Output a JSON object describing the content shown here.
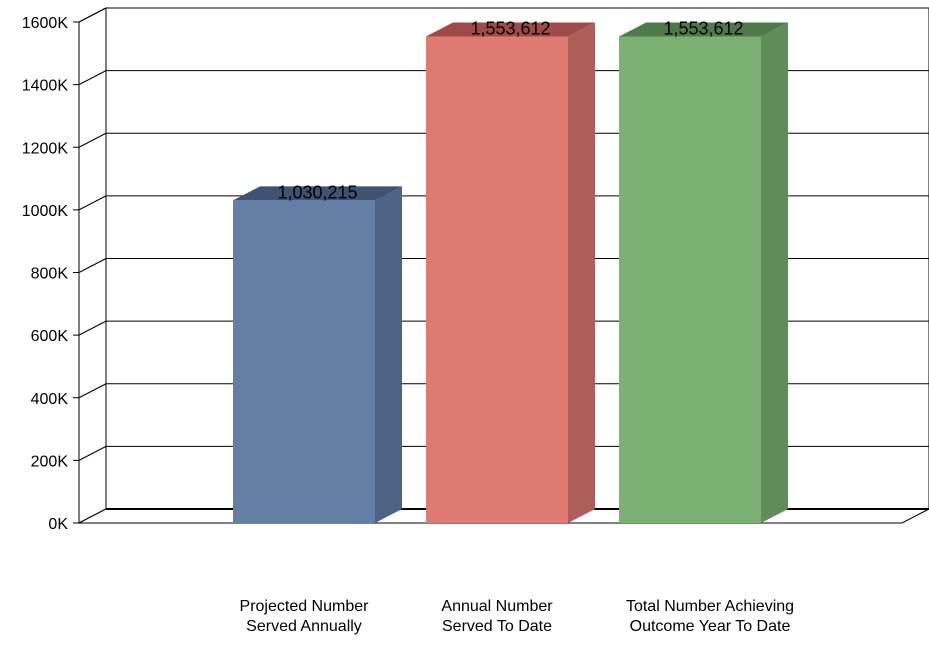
{
  "chart_data": {
    "type": "bar",
    "title": "",
    "xlabel": "",
    "ylabel": "",
    "ylim": [
      0,
      1600000
    ],
    "yticks": [
      {
        "value": 0,
        "label": "0K"
      },
      {
        "value": 200000,
        "label": "200K"
      },
      {
        "value": 400000,
        "label": "400K"
      },
      {
        "value": 600000,
        "label": "600K"
      },
      {
        "value": 800000,
        "label": "800K"
      },
      {
        "value": 1000000,
        "label": "1000K"
      },
      {
        "value": 1200000,
        "label": "1200K"
      },
      {
        "value": 1400000,
        "label": "1400K"
      },
      {
        "value": 1600000,
        "label": "1600K"
      }
    ],
    "grid": true,
    "categories": [
      "Projected Number\nServed Annually",
      "Annual Number\nServed To Date",
      "Total Number Achieving\nOutcome Year To Date"
    ],
    "values": [
      1030215,
      1553612,
      1553612
    ],
    "data_labels": [
      "1,030,215",
      "1,553,612",
      "1,553,612"
    ],
    "colors": [
      "#647FA5",
      "#DF7A73",
      "#7BB274"
    ],
    "side_colors": [
      "#4D6384",
      "#AE5E59",
      "#5F8C59"
    ],
    "top_colors": [
      "#3E5272",
      "#9E4A47",
      "#4E7A4A"
    ]
  }
}
